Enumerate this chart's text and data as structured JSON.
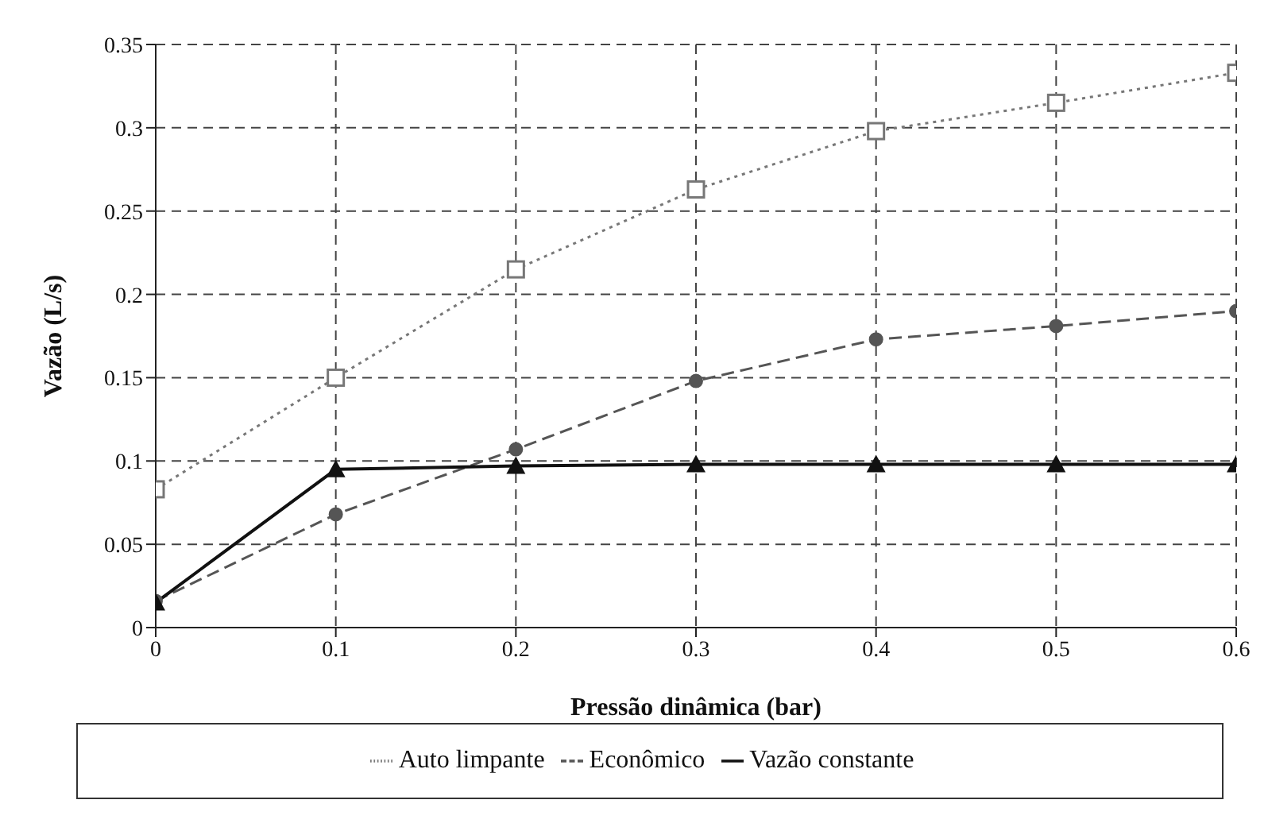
{
  "chart_data": {
    "type": "line",
    "xlabel": "Pressão dinâmica (bar)",
    "ylabel": "Vazão (L/s)",
    "x": [
      0,
      0.1,
      0.2,
      0.3,
      0.4,
      0.5,
      0.6
    ],
    "series": [
      {
        "name": "Econômico",
        "color": "#555555",
        "marker": "circle",
        "line_style": "dashed",
        "values": [
          0.016,
          0.068,
          0.107,
          0.148,
          0.173,
          0.181,
          0.19
        ]
      },
      {
        "name": "Auto limpante",
        "color": "#777777",
        "marker": "square",
        "line_style": "dotted",
        "values": [
          0.083,
          0.15,
          0.215,
          0.263,
          0.298,
          0.315,
          0.333
        ]
      },
      {
        "name": "Vazão constante",
        "color": "#111111",
        "marker": "triangle",
        "line_style": "solid",
        "values": [
          0.015,
          0.095,
          0.097,
          0.098,
          0.098,
          0.098,
          0.098
        ]
      }
    ],
    "xlim": [
      0,
      0.6
    ],
    "xticks": [
      0,
      0.1,
      0.2,
      0.3,
      0.4,
      0.5,
      0.6
    ],
    "ylim": [
      0,
      0.35
    ],
    "yticks": [
      0,
      0.05,
      0.1,
      0.15,
      0.2,
      0.25,
      0.3,
      0.35
    ],
    "grid": true,
    "legend": "bottom"
  }
}
